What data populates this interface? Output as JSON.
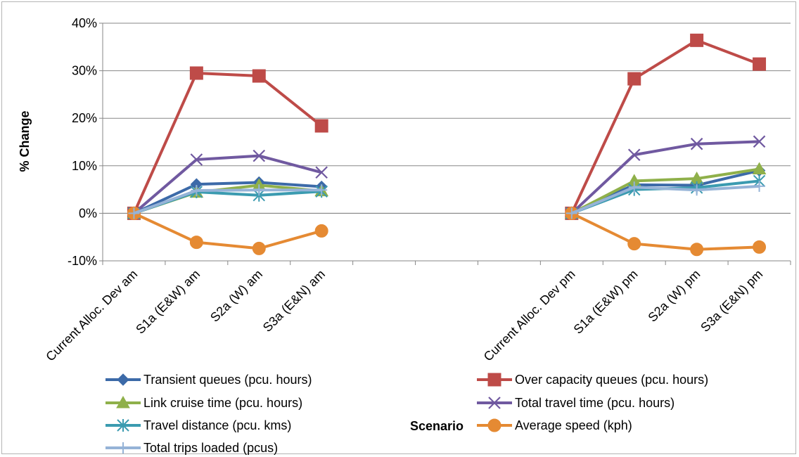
{
  "chart_data": {
    "type": "line",
    "title": "",
    "ylabel": "% Change",
    "xlabel": "Scenario",
    "ylim": [
      -10,
      40
    ],
    "yticks": [
      -10,
      0,
      10,
      20,
      30,
      40
    ],
    "ytick_labels": [
      "-10%",
      "0%",
      "10%",
      "20%",
      "30%",
      "40%"
    ],
    "grid": "horizontal",
    "legend_position": "bottom",
    "categories": [
      "Current Alloc. Dev am",
      "S1a (E&W) am",
      "S2a (W) am",
      "S3a (E&N) am",
      "",
      "",
      "",
      "Current Alloc. Dev pm",
      "S1a (E&W) pm",
      "S2a (W) pm",
      "S3a (E&N) pm"
    ],
    "series": [
      {
        "name": "Transient queues (pcu. hours)",
        "color": "#3c6aa8",
        "marker": "diamond",
        "values": [
          0,
          6.1,
          6.5,
          5.6,
          null,
          null,
          null,
          0,
          6.0,
          5.9,
          9.0
        ]
      },
      {
        "name": "Over capacity queues (pcu. hours)",
        "color": "#be4b48",
        "marker": "square",
        "values": [
          0,
          29.5,
          28.9,
          18.4,
          null,
          null,
          null,
          0,
          28.3,
          36.4,
          31.4
        ]
      },
      {
        "name": "Link cruise time (pcu. hours)",
        "color": "#8fb04a",
        "marker": "triangle",
        "values": [
          0,
          4.4,
          5.9,
          4.7,
          null,
          null,
          null,
          0,
          6.8,
          7.3,
          9.3
        ]
      },
      {
        "name": "Total travel time (pcu. hours)",
        "color": "#7059a0",
        "marker": "x",
        "values": [
          0,
          11.3,
          12.1,
          8.6,
          null,
          null,
          null,
          0,
          12.3,
          14.6,
          15.1
        ]
      },
      {
        "name": "Travel distance (pcu. kms)",
        "color": "#3b9bb0",
        "marker": "star",
        "values": [
          0,
          4.5,
          3.8,
          4.6,
          null,
          null,
          null,
          0,
          5.0,
          5.4,
          6.8
        ]
      },
      {
        "name": "Average speed (kph)",
        "color": "#e58a33",
        "marker": "circle",
        "values": [
          0,
          -6.1,
          -7.4,
          -3.7,
          null,
          null,
          null,
          0,
          -6.4,
          -7.6,
          -7.1
        ]
      },
      {
        "name": "Total trips loaded (pcus)",
        "color": "#95b3d7",
        "marker": "plus",
        "values": [
          0,
          4.8,
          4.9,
          4.9,
          null,
          null,
          null,
          0,
          5.5,
          4.9,
          5.7
        ]
      }
    ]
  }
}
